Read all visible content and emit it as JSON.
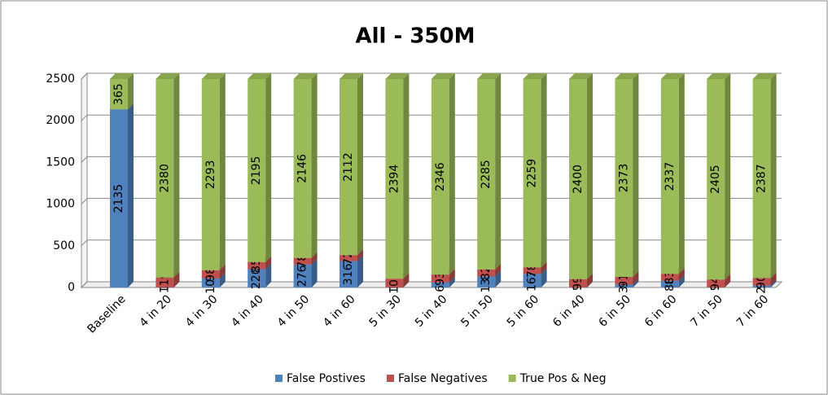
{
  "chart_data": {
    "type": "bar",
    "stacked": true,
    "title": "All - 350M",
    "categories": [
      "Baseline",
      "4 in 20",
      "4 in 30",
      "4 in 40",
      "4 in 50",
      "4 in 60",
      "5 in 30",
      "5 in 40",
      "5 in 50",
      "5 in 60",
      "6 in 40",
      "6 in 50",
      "6 in 60",
      "7 in 50",
      "7 in 60"
    ],
    "series": [
      {
        "name": "False Postives",
        "color": "#4f81bd",
        "values": [
          2135,
          1,
          109,
          220,
          276,
          316,
          1,
          61,
          133,
          163,
          1,
          36,
          80,
          1,
          23
        ]
      },
      {
        "name": "False Negatives",
        "color": "#c0504d",
        "values": [
          null,
          119,
          98,
          85,
          78,
          72,
          105,
          93,
          82,
          78,
          99,
          91,
          83,
          94,
          90
        ]
      },
      {
        "name": "True Pos & Neg",
        "color": "#9bbb59",
        "values": [
          365,
          2380,
          2293,
          2195,
          2146,
          2112,
          2394,
          2346,
          2285,
          2259,
          2400,
          2373,
          2337,
          2405,
          2387
        ]
      }
    ],
    "ylim": [
      0,
      2500
    ],
    "yticks": [
      0,
      500,
      1000,
      1500,
      2000,
      2500
    ],
    "grid": true,
    "legend": "bottom"
  }
}
